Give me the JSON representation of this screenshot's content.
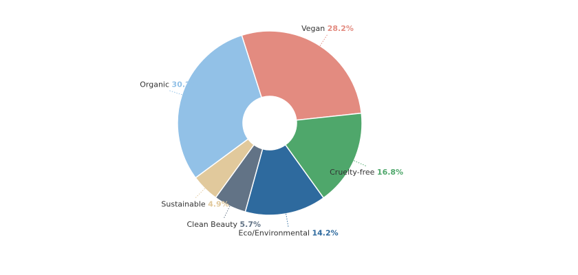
{
  "chart_data": {
    "type": "pie",
    "title": "",
    "categories": [
      "Vegan",
      "Cruelty-free",
      "Eco/Environmental",
      "Clean Beauty",
      "Sustainable",
      "Organic"
    ],
    "values": [
      28.2,
      16.8,
      14.2,
      5.7,
      4.9,
      30.2
    ],
    "value_labels": [
      "28.2%",
      "16.8%",
      "14.2%",
      "5.7%",
      "4.9%",
      "30.2%"
    ],
    "colors": [
      "#e38b80",
      "#4fa76b",
      "#2e6a9e",
      "#627386",
      "#e1c99c",
      "#92c1e7"
    ],
    "donut": true,
    "legend": "none"
  }
}
